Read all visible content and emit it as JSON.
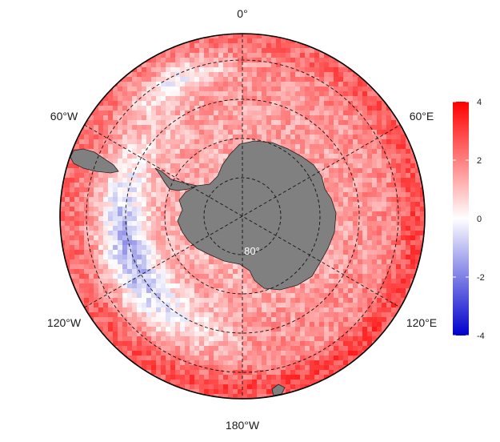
{
  "map": {
    "projection": "south-polar-stereographic",
    "land_color": "#808080",
    "graticule_style": "dashed",
    "longitude_labels": {
      "top": "0°",
      "upper_left": "60°W",
      "upper_right": "60°E",
      "lower_left": "120°W",
      "lower_right": "120°E",
      "bottom": "180°W"
    },
    "latitude_label": "80°"
  },
  "colorbar": {
    "min": -4,
    "max": 4,
    "ticks": [
      "4",
      "2",
      "0",
      "-2",
      "-4"
    ],
    "colors": {
      "low": "#0000cc",
      "mid": "#ffffff",
      "high": "#ff0000"
    }
  }
}
